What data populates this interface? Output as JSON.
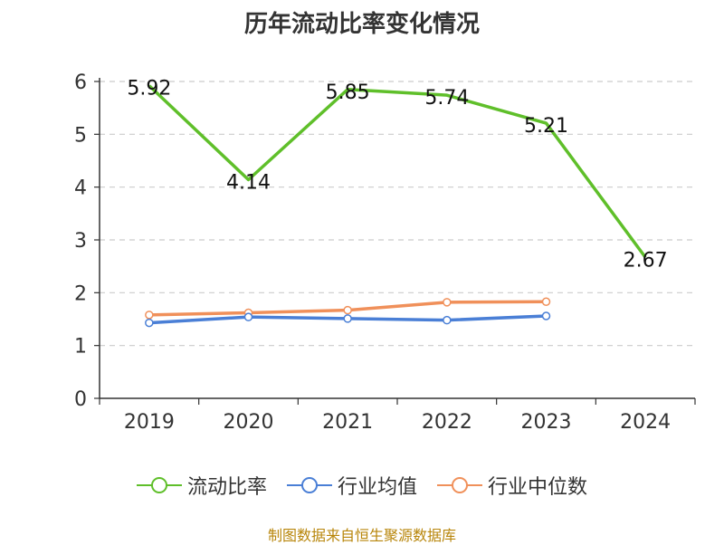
{
  "title": "历年流动比率变化情况",
  "footer": "制图数据来自恒生聚源数据库",
  "colors": {
    "series1": "#5fbf2a",
    "series2": "#4a7fd6",
    "series3": "#f0905a"
  },
  "chart_data": {
    "type": "line",
    "title": "历年流动比率变化情况",
    "categories": [
      "2019",
      "2020",
      "2021",
      "2022",
      "2023",
      "2024"
    ],
    "yticks": [
      "0",
      "1",
      "2",
      "3",
      "4",
      "5",
      "6"
    ],
    "ylim": [
      0,
      6
    ],
    "grid": true,
    "legend_position": "bottom",
    "series": [
      {
        "name": "流动比率",
        "color": "#5fbf2a",
        "values": [
          5.92,
          4.14,
          5.85,
          5.74,
          5.21,
          2.67
        ],
        "labels": [
          "5.92",
          "4.14",
          "5.85",
          "5.74",
          "5.21",
          "2.67"
        ]
      },
      {
        "name": "行业均值",
        "color": "#4a7fd6",
        "values": [
          1.43,
          1.54,
          1.51,
          1.48,
          1.56,
          null
        ]
      },
      {
        "name": "行业中位数",
        "color": "#f0905a",
        "values": [
          1.58,
          1.62,
          1.67,
          1.82,
          1.83,
          null
        ]
      }
    ]
  }
}
